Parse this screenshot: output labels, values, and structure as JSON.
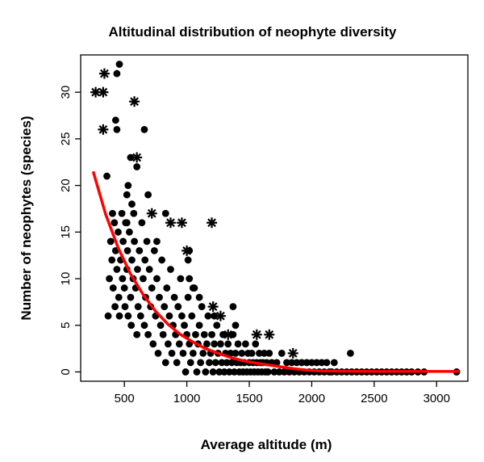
{
  "chart_data": {
    "type": "scatter",
    "title": "Altitudinal distribution of neophyte diversity",
    "xlabel": "Average altitude (m)",
    "ylabel": "Number of neophytes (species)",
    "xlim": [
      150,
      3250
    ],
    "ylim": [
      -1,
      34
    ],
    "xticks": [
      500,
      1000,
      1500,
      2000,
      2500,
      3000
    ],
    "yticks": [
      0,
      5,
      10,
      15,
      20,
      25,
      30
    ],
    "grid": false,
    "legend": "none",
    "colors": {
      "points": "#000000",
      "fit_line": "#ff0000"
    },
    "series": [
      {
        "marker": "dot",
        "points": [
          [
            370,
            6
          ],
          [
            380,
            10
          ],
          [
            390,
            14
          ],
          [
            400,
            12
          ],
          [
            405,
            17
          ],
          [
            410,
            9
          ],
          [
            420,
            16
          ],
          [
            425,
            7
          ],
          [
            430,
            13
          ],
          [
            440,
            11
          ],
          [
            450,
            15
          ],
          [
            455,
            8
          ],
          [
            460,
            6
          ],
          [
            470,
            12
          ],
          [
            480,
            17
          ],
          [
            485,
            10
          ],
          [
            490,
            14
          ],
          [
            500,
            9
          ],
          [
            505,
            7
          ],
          [
            510,
            16
          ],
          [
            520,
            11
          ],
          [
            525,
            13
          ],
          [
            530,
            6
          ],
          [
            540,
            15
          ],
          [
            550,
            8
          ],
          [
            555,
            5
          ],
          [
            560,
            12
          ],
          [
            570,
            10
          ],
          [
            575,
            17
          ],
          [
            580,
            14
          ],
          [
            590,
            9
          ],
          [
            600,
            4
          ],
          [
            605,
            11
          ],
          [
            610,
            7
          ],
          [
            620,
            13
          ],
          [
            630,
            6
          ],
          [
            640,
            16
          ],
          [
            650,
            10
          ],
          [
            660,
            5
          ],
          [
            665,
            12
          ],
          [
            670,
            8
          ],
          [
            680,
            14
          ],
          [
            690,
            4
          ],
          [
            700,
            11
          ],
          [
            710,
            7
          ],
          [
            720,
            9
          ],
          [
            730,
            3
          ],
          [
            740,
            13
          ],
          [
            750,
            6
          ],
          [
            760,
            10
          ],
          [
            770,
            2
          ],
          [
            780,
            8
          ],
          [
            790,
            5
          ],
          [
            800,
            12
          ],
          [
            810,
            4
          ],
          [
            820,
            7
          ],
          [
            830,
            1
          ],
          [
            840,
            9
          ],
          [
            850,
            3
          ],
          [
            860,
            6
          ],
          [
            870,
            11
          ],
          [
            880,
            2
          ],
          [
            890,
            5
          ],
          [
            900,
            8
          ],
          [
            910,
            4
          ],
          [
            920,
            1
          ],
          [
            930,
            7
          ],
          [
            940,
            3
          ],
          [
            950,
            10
          ],
          [
            960,
            6
          ],
          [
            970,
            2
          ],
          [
            980,
            5
          ],
          [
            990,
            0
          ],
          [
            1000,
            4
          ],
          [
            1010,
            8
          ],
          [
            1020,
            3
          ],
          [
            1030,
            1
          ],
          [
            1040,
            6
          ],
          [
            1050,
            2
          ],
          [
            1060,
            9
          ],
          [
            1070,
            4
          ],
          [
            1080,
            0
          ],
          [
            1090,
            3
          ],
          [
            1100,
            5
          ],
          [
            1110,
            1
          ],
          [
            1120,
            7
          ],
          [
            1130,
            2
          ],
          [
            1140,
            4
          ],
          [
            1150,
            0
          ],
          [
            1160,
            3
          ],
          [
            1170,
            6
          ],
          [
            1180,
            1
          ],
          [
            1190,
            2
          ],
          [
            1200,
            4
          ],
          [
            1210,
            0
          ],
          [
            1220,
            3
          ],
          [
            1230,
            1
          ],
          [
            1240,
            5
          ],
          [
            1250,
            2
          ],
          [
            1260,
            0
          ],
          [
            1270,
            3
          ],
          [
            1280,
            1
          ],
          [
            1290,
            4
          ],
          [
            1300,
            0
          ],
          [
            1310,
            2
          ],
          [
            1320,
            1
          ],
          [
            1330,
            3
          ],
          [
            1340,
            0
          ],
          [
            1350,
            2
          ],
          [
            1360,
            1
          ],
          [
            1370,
            4
          ],
          [
            1380,
            0
          ],
          [
            1390,
            2
          ],
          [
            1400,
            1
          ],
          [
            1410,
            3
          ],
          [
            1420,
            0
          ],
          [
            1430,
            1
          ],
          [
            1440,
            2
          ],
          [
            1450,
            0
          ],
          [
            1460,
            1
          ],
          [
            1470,
            3
          ],
          [
            1480,
            0
          ],
          [
            1490,
            2
          ],
          [
            1500,
            1
          ],
          [
            1510,
            0
          ],
          [
            1520,
            2
          ],
          [
            1530,
            1
          ],
          [
            1540,
            0
          ],
          [
            1550,
            3
          ],
          [
            1560,
            1
          ],
          [
            1570,
            0
          ],
          [
            1580,
            2
          ],
          [
            1590,
            1
          ],
          [
            1600,
            0
          ],
          [
            1610,
            1
          ],
          [
            1620,
            2
          ],
          [
            1630,
            0
          ],
          [
            1640,
            1
          ],
          [
            1650,
            0
          ],
          [
            1660,
            2
          ],
          [
            1680,
            1
          ],
          [
            1700,
            0
          ],
          [
            1720,
            1
          ],
          [
            1740,
            0
          ],
          [
            1760,
            2
          ],
          [
            1780,
            0
          ],
          [
            1800,
            1
          ],
          [
            1820,
            0
          ],
          [
            1840,
            1
          ],
          [
            1860,
            0
          ],
          [
            1880,
            1
          ],
          [
            1900,
            0
          ],
          [
            1920,
            1
          ],
          [
            1940,
            0
          ],
          [
            1960,
            1
          ],
          [
            1980,
            0
          ],
          [
            2000,
            1
          ],
          [
            2020,
            0
          ],
          [
            2040,
            1
          ],
          [
            2060,
            0
          ],
          [
            2080,
            1
          ],
          [
            2100,
            0
          ],
          [
            2120,
            1
          ],
          [
            2140,
            0
          ],
          [
            2160,
            0
          ],
          [
            2180,
            1
          ],
          [
            2200,
            0
          ],
          [
            2240,
            0
          ],
          [
            2280,
            0
          ],
          [
            2320,
            0
          ],
          [
            2360,
            0
          ],
          [
            2400,
            0
          ],
          [
            2440,
            0
          ],
          [
            2480,
            0
          ],
          [
            2520,
            0
          ],
          [
            2560,
            0
          ],
          [
            2600,
            0
          ],
          [
            2640,
            0
          ],
          [
            2680,
            0
          ],
          [
            2720,
            0
          ],
          [
            2760,
            0
          ],
          [
            2800,
            0
          ],
          [
            2850,
            0
          ],
          [
            2900,
            0
          ],
          [
            3160,
            0
          ],
          [
            460,
            33
          ],
          [
            440,
            32
          ],
          [
            430,
            27
          ],
          [
            440,
            26
          ],
          [
            660,
            26
          ],
          [
            550,
            23
          ],
          [
            600,
            22
          ],
          [
            520,
            19
          ],
          [
            530,
            20
          ],
          [
            360,
            21
          ],
          [
            560,
            18
          ],
          [
            520,
            16
          ],
          [
            1010,
            12
          ],
          [
            1020,
            10
          ],
          [
            1020,
            13
          ],
          [
            1050,
            9
          ],
          [
            1100,
            8
          ],
          [
            1370,
            7
          ],
          [
            1390,
            5
          ],
          [
            1220,
            6
          ],
          [
            2310,
            2
          ],
          [
            830,
            17
          ],
          [
            760,
            14
          ],
          [
            690,
            19
          ]
        ]
      },
      {
        "marker": "asterisk",
        "points": [
          [
            270,
            30
          ],
          [
            330,
            30
          ],
          [
            340,
            32
          ],
          [
            330,
            26
          ],
          [
            580,
            29
          ],
          [
            600,
            23
          ],
          [
            720,
            17
          ],
          [
            870,
            16
          ],
          [
            960,
            16
          ],
          [
            1000,
            13
          ],
          [
            1200,
            16
          ],
          [
            1210,
            7
          ],
          [
            1270,
            6
          ],
          [
            1330,
            4
          ],
          [
            1560,
            4
          ],
          [
            1660,
            4
          ],
          [
            1850,
            2
          ]
        ]
      }
    ],
    "fit_line": {
      "x": [
        250,
        350,
        450,
        550,
        650,
        750,
        850,
        950,
        1050,
        1150,
        1250,
        1350,
        1450,
        1550,
        1650,
        1750,
        1850,
        1950,
        2050,
        2250,
        2500,
        2800,
        3100,
        3180
      ],
      "y": [
        21.5,
        16.9,
        13.3,
        10.5,
        8.3,
        6.5,
        5.1,
        4.0,
        3.2,
        2.5,
        2.0,
        1.55,
        1.2,
        0.95,
        0.75,
        0.55,
        0.35,
        0.2,
        0.12,
        0.07,
        0.05,
        0.05,
        0.05,
        0.05
      ]
    }
  }
}
